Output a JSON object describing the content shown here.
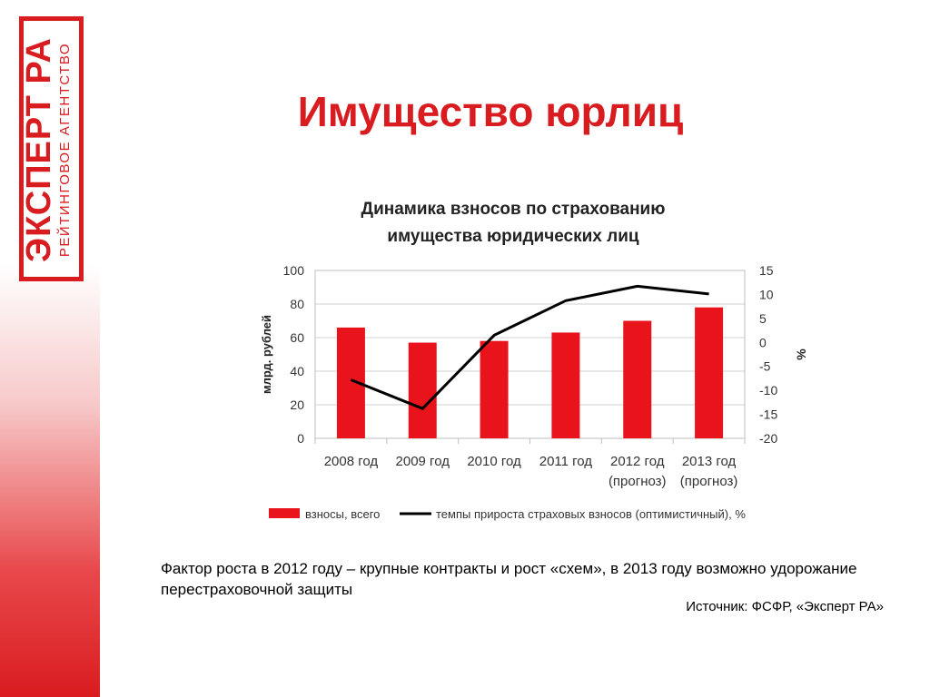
{
  "logo": {
    "main": "ЭКСПЕРТ РА",
    "sub": "РЕЙТИНГОВОЕ АГЕНТСТВО"
  },
  "slide": {
    "title": "Имущество юрлиц",
    "note": "Фактор роста в 2012 году – крупные контракты и рост «схем», в 2013 году возможно удорожание перестраховочной защиты",
    "source": "Источник: ФСФР, «Эксперт РА»"
  },
  "colors": {
    "brand_red": "#d91c20",
    "bar_red": "#e8131b",
    "line": "#000000"
  },
  "chart_data": {
    "type": "bar",
    "title_lines": [
      "Динамика взносов по страхованию",
      "имущества юридических лиц"
    ],
    "categories": [
      [
        "2008 год"
      ],
      [
        "2009 год"
      ],
      [
        "2010 год"
      ],
      [
        "2011 год"
      ],
      [
        "2012 год",
        "(прогноз)"
      ],
      [
        "2013 год",
        "(прогноз)"
      ]
    ],
    "series": [
      {
        "name": "взносы, всего",
        "type": "bar",
        "axis": "left",
        "values": [
          66,
          57,
          58,
          63,
          70,
          78
        ]
      },
      {
        "name": "темпы прироста страховых взносов (оптимистичный), %",
        "type": "line",
        "axis": "right",
        "values": [
          -7.8,
          -13.8,
          1.5,
          8.7,
          11.7,
          10.1
        ]
      }
    ],
    "ylabel": "млрд. рублей",
    "ylim": [
      0,
      100
    ],
    "yticks": [
      0,
      20,
      40,
      60,
      80,
      100
    ],
    "y2label": "%",
    "y2lim": [
      -20,
      15
    ],
    "y2ticks": [
      -20,
      -15,
      -10,
      -5,
      0,
      5,
      10,
      15
    ],
    "grid": true,
    "legend": "bottom"
  }
}
